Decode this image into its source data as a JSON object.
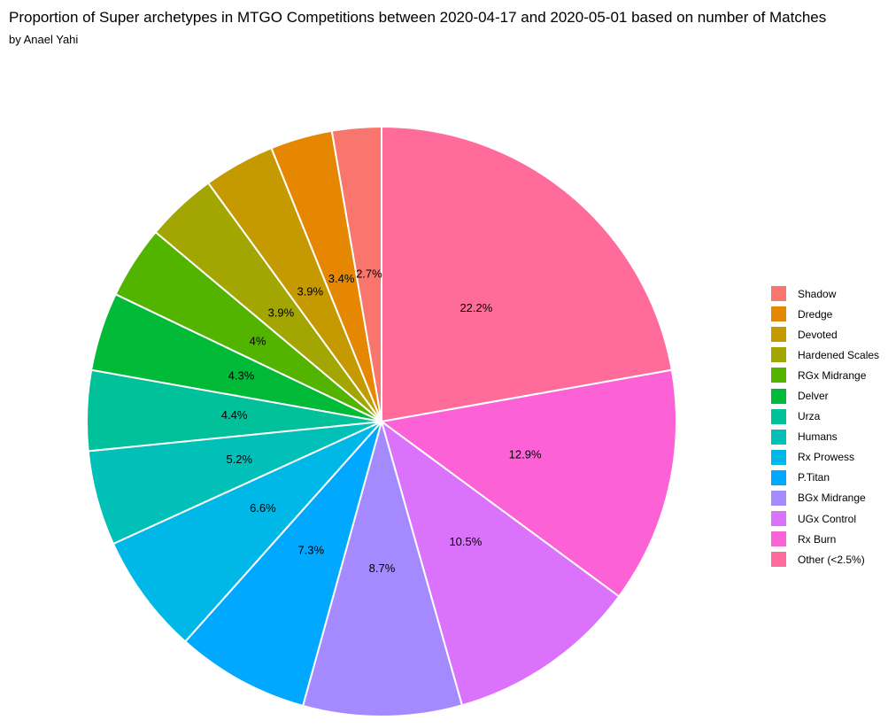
{
  "chart_data": {
    "type": "pie",
    "title": "Proportion of Super archetypes in MTGO Competitions between 2020-04-17 and 2020-05-01 based on number of Matches",
    "subtitle": "by Anael Yahi",
    "legend_position": "right",
    "slices": [
      {
        "name": "Other (<2.5%)",
        "value": 22.2,
        "label": "22.2%",
        "color": "#FF6C9C"
      },
      {
        "name": "Rx Burn",
        "value": 12.9,
        "label": "12.9%",
        "color": "#FC61D5"
      },
      {
        "name": "UGx Control",
        "value": 10.5,
        "label": "10.5%",
        "color": "#DB72FB"
      },
      {
        "name": "BGx Midrange",
        "value": 8.7,
        "label": "8.7%",
        "color": "#A58AFF"
      },
      {
        "name": "P.Titan",
        "value": 7.3,
        "label": "7.3%",
        "color": "#00A9FF"
      },
      {
        "name": "Rx Prowess",
        "value": 6.6,
        "label": "6.6%",
        "color": "#00B8E7"
      },
      {
        "name": "Humans",
        "value": 5.2,
        "label": "5.2%",
        "color": "#00C0B8"
      },
      {
        "name": "Urza",
        "value": 4.4,
        "label": "4.4%",
        "color": "#00C19A"
      },
      {
        "name": "Delver",
        "value": 4.3,
        "label": "4.3%",
        "color": "#00BA38"
      },
      {
        "name": "RGx Midrange",
        "value": 4.0,
        "label": "4%",
        "color": "#53B400"
      },
      {
        "name": "Hardened Scales",
        "value": 3.9,
        "label": "3.9%",
        "color": "#A3A500"
      },
      {
        "name": "Devoted",
        "value": 3.9,
        "label": "3.9%",
        "color": "#C49A00"
      },
      {
        "name": "Dredge",
        "value": 3.4,
        "label": "3.4%",
        "color": "#E58700"
      },
      {
        "name": "Shadow",
        "value": 2.7,
        "label": "2.7%",
        "color": "#F8766D"
      }
    ],
    "legend_order": [
      "Shadow",
      "Dredge",
      "Devoted",
      "Hardened Scales",
      "RGx Midrange",
      "Delver",
      "Urza",
      "Humans",
      "Rx Prowess",
      "P.Titan",
      "BGx Midrange",
      "UGx Control",
      "Rx Burn",
      "Other (<2.5%)"
    ]
  }
}
